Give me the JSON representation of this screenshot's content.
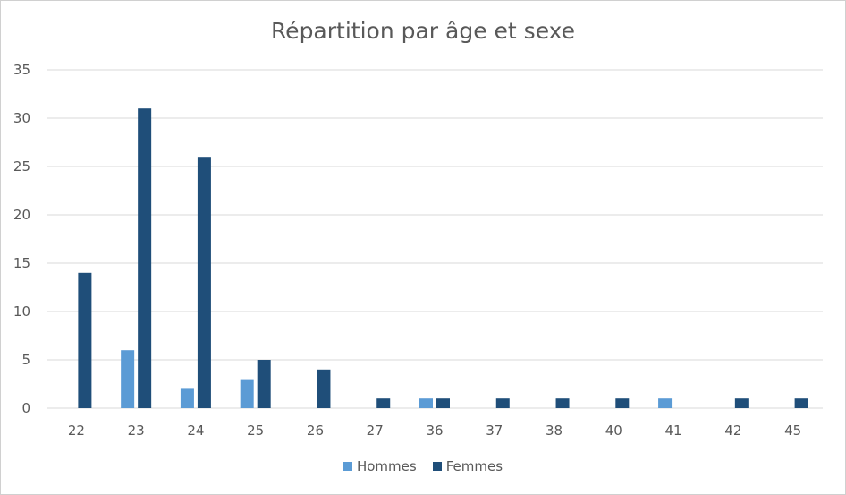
{
  "chart_data": {
    "type": "bar",
    "title": "Répartition par âge et sexe",
    "xlabel": "",
    "ylabel": "",
    "categories": [
      "22",
      "23",
      "24",
      "25",
      "26",
      "27",
      "36",
      "37",
      "38",
      "40",
      "41",
      "42",
      "45"
    ],
    "series": [
      {
        "name": "Hommes",
        "color": "#5b9bd5",
        "values": [
          0,
          6,
          2,
          3,
          0,
          0,
          1,
          0,
          0,
          0,
          1,
          0,
          0
        ]
      },
      {
        "name": "Femmes",
        "color": "#1f4e79",
        "values": [
          14,
          31,
          26,
          5,
          4,
          1,
          1,
          1,
          1,
          1,
          0,
          1,
          1
        ]
      }
    ],
    "ylim": [
      0,
      35
    ],
    "yticks": [
      0,
      5,
      10,
      15,
      20,
      25,
      30,
      35
    ],
    "grid": true,
    "legend": "bottom"
  }
}
